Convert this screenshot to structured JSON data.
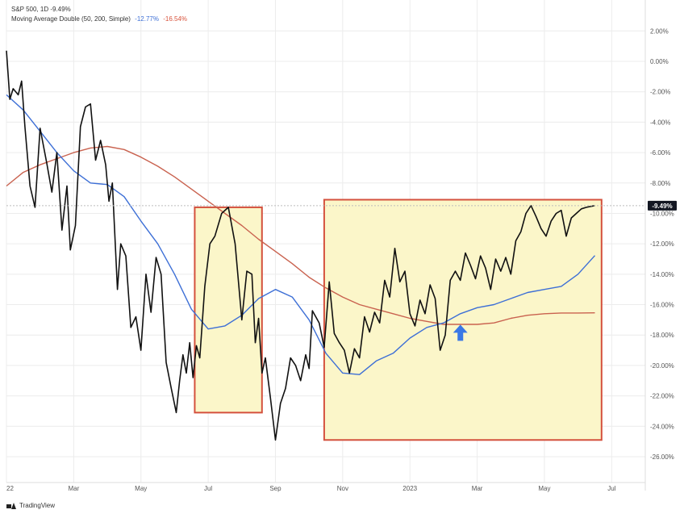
{
  "legend": {
    "symbol_line": "S&P 500, 1D",
    "symbol_value": "-9.49%",
    "ma_line": "Moving Average Double (50, 200, Simple)",
    "ma_fast_value": "-12.77%",
    "ma_slow_value": "-16.54%"
  },
  "footer": {
    "brand": "TradingView"
  },
  "price_label": "-9.49%",
  "colors": {
    "price": "#111111",
    "ma_fast": "#3d6fd6",
    "ma_slow": "#c9624f",
    "box_fill": "#fbf6c9",
    "box_stroke": "#d4513e",
    "arrow": "#3a78e6",
    "grid": "#ececec",
    "axis_text": "#555555"
  },
  "chart_data": {
    "type": "line",
    "xlabel": "",
    "ylabel": "",
    "y_unit": "%",
    "ylim": [
      -27,
      3.2
    ],
    "xlim": [
      0,
      19
    ],
    "x_ticks": [
      {
        "x": 0,
        "label": "22"
      },
      {
        "x": 2,
        "label": "Mar"
      },
      {
        "x": 4,
        "label": "May"
      },
      {
        "x": 6,
        "label": "Jul"
      },
      {
        "x": 8,
        "label": "Sep"
      },
      {
        "x": 10,
        "label": "Nov"
      },
      {
        "x": 12,
        "label": "2023"
      },
      {
        "x": 14,
        "label": "Mar"
      },
      {
        "x": 16,
        "label": "May"
      },
      {
        "x": 18,
        "label": "Jul"
      }
    ],
    "y_ticks": [
      2,
      0,
      -2,
      -4,
      -6,
      -8,
      -10,
      -12,
      -14,
      -16,
      -18,
      -20,
      -22,
      -24,
      -26
    ],
    "y_tick_labels": [
      "2.00%",
      "0.00%",
      "-2.00%",
      "-4.00%",
      "-6.00%",
      "-8.00%",
      "-10.00%",
      "-12.00%",
      "-14.00%",
      "-16.00%",
      "-18.00%",
      "-20.00%",
      "-22.00%",
      "-24.00%",
      "-26.00%"
    ],
    "last_value": -9.49,
    "series": [
      {
        "key": "price",
        "x": [
          0,
          0.1,
          0.2,
          0.35,
          0.45,
          0.55,
          0.7,
          0.85,
          1.0,
          1.2,
          1.35,
          1.5,
          1.65,
          1.8,
          1.9,
          2.05,
          2.2,
          2.35,
          2.5,
          2.65,
          2.8,
          2.95,
          3.05,
          3.15,
          3.3,
          3.4,
          3.55,
          3.7,
          3.85,
          4.0,
          4.15,
          4.3,
          4.45,
          4.6,
          4.75,
          4.9,
          5.05,
          5.15,
          5.25,
          5.35,
          5.45,
          5.55,
          5.65,
          5.75,
          5.9,
          6.05,
          6.2,
          6.4,
          6.6,
          6.8,
          7.0,
          7.15,
          7.3,
          7.4,
          7.5,
          7.6,
          7.7,
          7.85,
          8.0,
          8.15,
          8.3,
          8.45,
          8.6,
          8.75,
          8.9,
          9.0,
          9.1,
          9.2,
          9.3,
          9.45,
          9.6,
          9.75,
          9.9,
          10.05,
          10.2,
          10.35,
          10.5,
          10.65,
          10.8,
          10.95,
          11.1,
          11.25,
          11.4,
          11.55,
          11.7,
          11.85,
          12.0,
          12.15,
          12.3,
          12.45,
          12.6,
          12.75,
          12.9,
          13.05,
          13.2,
          13.35,
          13.5,
          13.65,
          13.8,
          13.95,
          14.1,
          14.25,
          14.4,
          14.55,
          14.7,
          14.85,
          15.0,
          15.15,
          15.3,
          15.45,
          15.6,
          15.75,
          15.9,
          16.05,
          16.2,
          16.35,
          16.5,
          16.65,
          16.8,
          16.95,
          17.1,
          17.25,
          17.5
        ],
        "y": [
          0.7,
          -2.5,
          -1.8,
          -2.2,
          -1.3,
          -4.3,
          -8.2,
          -9.6,
          -4.4,
          -6.7,
          -8.6,
          -6.0,
          -11.1,
          -8.2,
          -12.4,
          -10.8,
          -4.3,
          -3.0,
          -2.8,
          -6.5,
          -5.2,
          -6.8,
          -9.2,
          -8.0,
          -15.0,
          -12.0,
          -12.8,
          -17.5,
          -16.8,
          -19.0,
          -14.0,
          -16.5,
          -12.9,
          -14.0,
          -19.8,
          -21.5,
          -23.1,
          -21.0,
          -19.3,
          -20.5,
          -18.5,
          -20.8,
          -18.7,
          -19.5,
          -14.8,
          -12.0,
          -11.5,
          -10.0,
          -9.6,
          -12.0,
          -17.0,
          -13.8,
          -14.0,
          -18.5,
          -16.9,
          -20.5,
          -19.5,
          -22.1,
          -24.9,
          -22.5,
          -21.5,
          -19.5,
          -20.0,
          -21.0,
          -19.3,
          -20.2,
          -16.4,
          -16.8,
          -17.2,
          -18.8,
          -14.5,
          -17.9,
          -18.5,
          -19.0,
          -20.5,
          -18.9,
          -19.5,
          -16.8,
          -17.8,
          -16.5,
          -17.2,
          -14.4,
          -15.5,
          -12.3,
          -14.5,
          -13.8,
          -16.6,
          -17.4,
          -15.7,
          -16.6,
          -14.7,
          -15.6,
          -19.0,
          -18.0,
          -14.4,
          -13.8,
          -14.4,
          -12.6,
          -13.4,
          -14.3,
          -12.8,
          -13.6,
          -15.0,
          -13.0,
          -13.8,
          -12.9,
          -14.0,
          -11.8,
          -11.2,
          -10.0,
          -9.49,
          -10.2,
          -11.0,
          -11.5,
          -10.5,
          -10.0,
          -9.8,
          -11.5,
          -10.3,
          -10.0,
          -9.7,
          -9.6,
          -9.49
        ]
      },
      {
        "key": "ma_fast",
        "x": [
          0,
          0.5,
          1.0,
          1.5,
          2.0,
          2.5,
          3.0,
          3.5,
          4.0,
          4.5,
          5.0,
          5.5,
          6.0,
          6.5,
          7.0,
          7.5,
          8.0,
          8.5,
          9.0,
          9.5,
          10.0,
          10.5,
          11.0,
          11.5,
          12.0,
          12.5,
          13.0,
          13.5,
          14.0,
          14.5,
          15.0,
          15.5,
          16.0,
          16.5,
          17.0,
          17.5
        ],
        "y": [
          -2.2,
          -3.2,
          -4.6,
          -6.0,
          -7.2,
          -8.0,
          -8.1,
          -8.9,
          -10.5,
          -12.0,
          -14.0,
          -16.3,
          -17.6,
          -17.4,
          -16.7,
          -15.6,
          -15.0,
          -15.5,
          -17.0,
          -19.2,
          -20.5,
          -20.6,
          -19.7,
          -19.2,
          -18.2,
          -17.5,
          -17.2,
          -16.6,
          -16.2,
          -16.0,
          -15.6,
          -15.2,
          -15.0,
          -14.8,
          -14.0,
          -12.77
        ]
      },
      {
        "key": "ma_slow",
        "x": [
          0,
          0.5,
          1.0,
          1.5,
          2.0,
          2.5,
          3.0,
          3.5,
          4.0,
          4.5,
          5.0,
          5.5,
          6.0,
          6.5,
          7.0,
          7.5,
          8.0,
          8.5,
          9.0,
          9.5,
          10.0,
          10.5,
          11.0,
          11.5,
          12.0,
          12.5,
          13.0,
          13.5,
          14.0,
          14.5,
          15.0,
          15.5,
          16.0,
          16.5,
          17.0,
          17.5
        ],
        "y": [
          -8.2,
          -7.3,
          -6.8,
          -6.4,
          -6.0,
          -5.7,
          -5.6,
          -5.8,
          -6.3,
          -6.9,
          -7.6,
          -8.4,
          -9.2,
          -10.0,
          -10.8,
          -11.7,
          -12.5,
          -13.3,
          -14.2,
          -14.9,
          -15.5,
          -16.0,
          -16.3,
          -16.6,
          -16.9,
          -17.1,
          -17.3,
          -17.3,
          -17.3,
          -17.2,
          -16.9,
          -16.7,
          -16.6,
          -16.55,
          -16.55,
          -16.54
        ]
      }
    ],
    "highlight_boxes": [
      {
        "x0": 5.6,
        "x1": 7.6,
        "y0": -23.1,
        "y1": -9.6
      },
      {
        "x0": 9.45,
        "x1": 17.7,
        "y0": -24.9,
        "y1": -9.1
      }
    ],
    "arrow_marker": {
      "x": 13.5,
      "y": -17.9,
      "direction": "up"
    }
  }
}
